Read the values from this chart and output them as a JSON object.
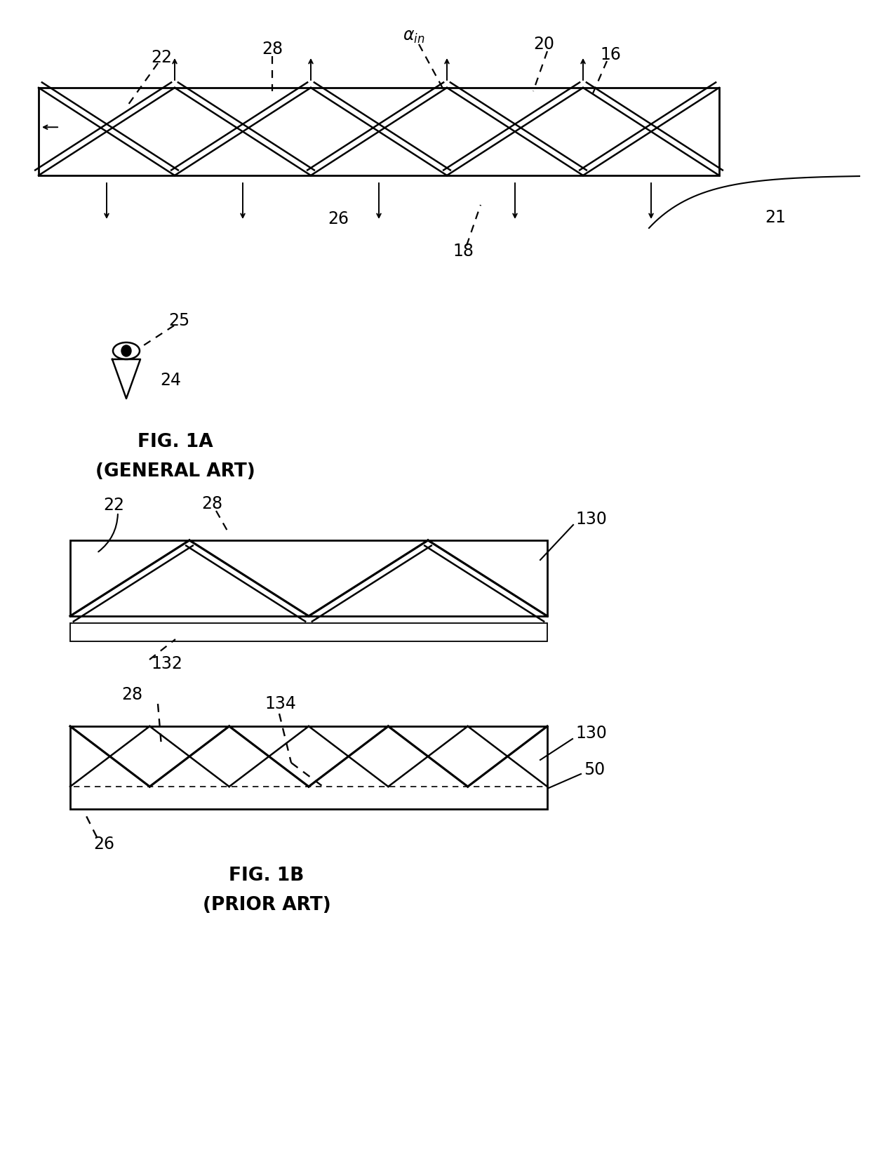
{
  "bg_color": "#ffffff",
  "fig_width": 12.4,
  "fig_height": 16.66,
  "dpi": 100,
  "fig1a_label": "FIG. 1A",
  "fig1a_sublabel": "(GENERAL ART)",
  "fig1b_label": "FIG. 1B",
  "fig1b_sublabel": "(PRIOR ART)"
}
